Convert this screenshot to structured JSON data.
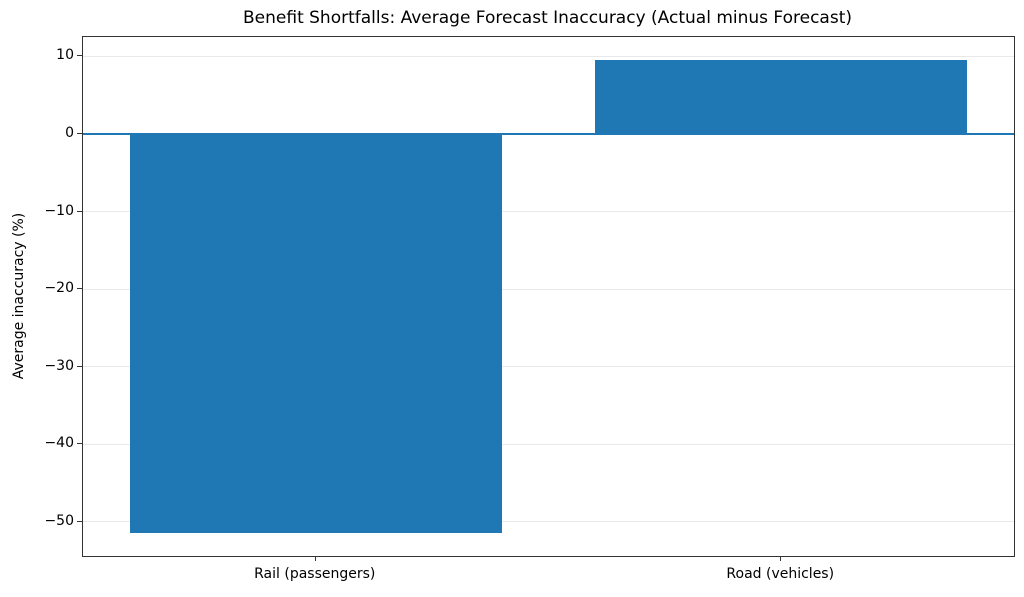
{
  "chart_data": {
    "type": "bar",
    "title": "Benefit Shortfalls: Average Forecast Inaccuracy (Actual minus Forecast)",
    "xlabel": "",
    "ylabel": "Average inaccuracy (%)",
    "categories": [
      "Rail (passengers)",
      "Road (vehicles)"
    ],
    "values": [
      -51.4,
      9.5
    ],
    "yticks": [
      10,
      0,
      -10,
      -20,
      -30,
      -40,
      -50
    ],
    "ylim": [
      -54.4,
      12.5
    ],
    "bar_color": "#1f77b4",
    "zero_line_color": "#1f77b4",
    "grid": true,
    "grid_color": "#e9e9e9",
    "spine_color": "#333333",
    "legend": "none"
  }
}
